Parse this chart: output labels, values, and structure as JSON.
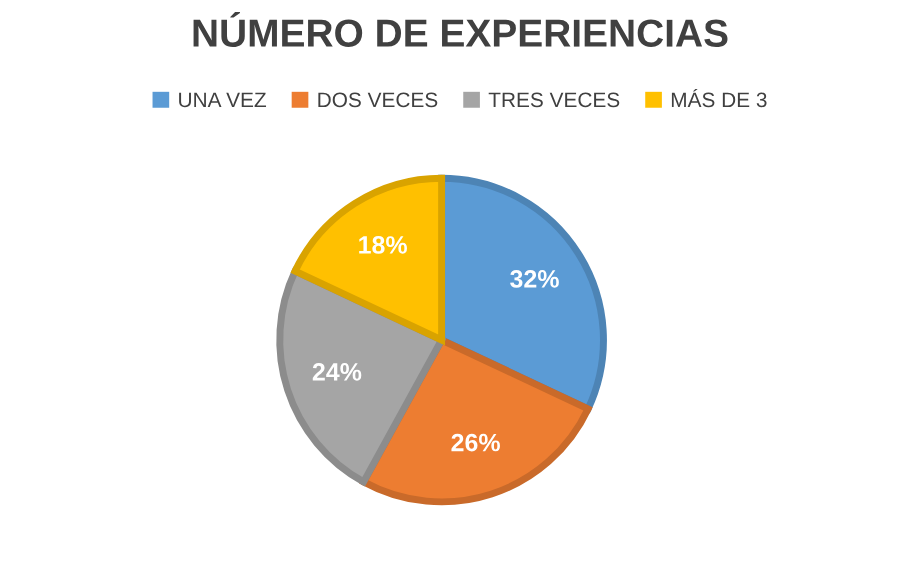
{
  "chart_data": {
    "type": "pie",
    "title": "NÚMERO DE EXPERIENCIAS",
    "categories": [
      "UNA VEZ",
      "DOS VECES",
      "TRES VECES",
      "MÁS DE 3"
    ],
    "values": [
      32,
      26,
      24,
      18
    ],
    "colors": [
      "#5b9bd5",
      "#ed7d31",
      "#a5a5a5",
      "#ffc000"
    ],
    "value_labels": [
      "32%",
      "26%",
      "24%",
      "18%"
    ],
    "legend": "top"
  }
}
